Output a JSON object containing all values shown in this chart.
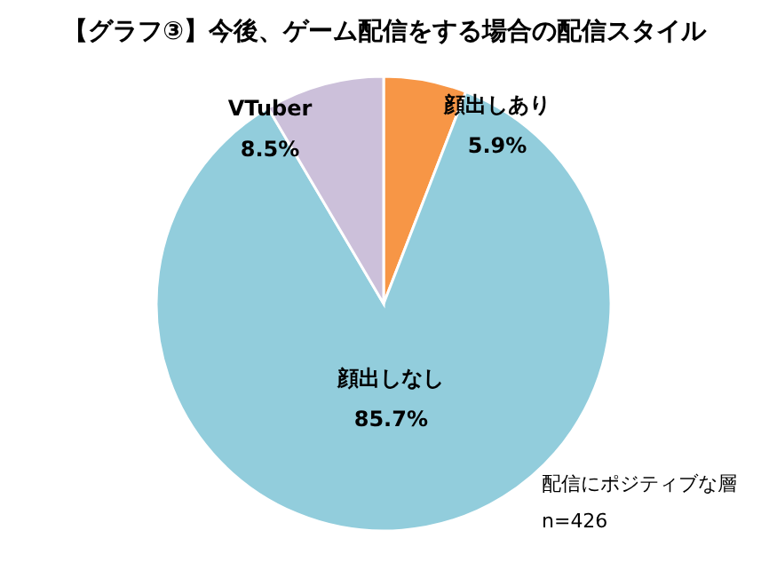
{
  "chart_data": {
    "type": "pie",
    "title": "【グラフ③】今後、ゲーム配信をする場合の配信スタイル",
    "categories": [
      "顔出しあり",
      "顔出しなし",
      "VTuber"
    ],
    "values": [
      5.9,
      85.7,
      8.5
    ],
    "colors": [
      "#f79646",
      "#92cddc",
      "#ccc0da"
    ],
    "value_labels": [
      "5.9%",
      "85.7%",
      "8.5%"
    ],
    "annotations": [
      "配信にポジティブな層",
      "n=426"
    ]
  }
}
